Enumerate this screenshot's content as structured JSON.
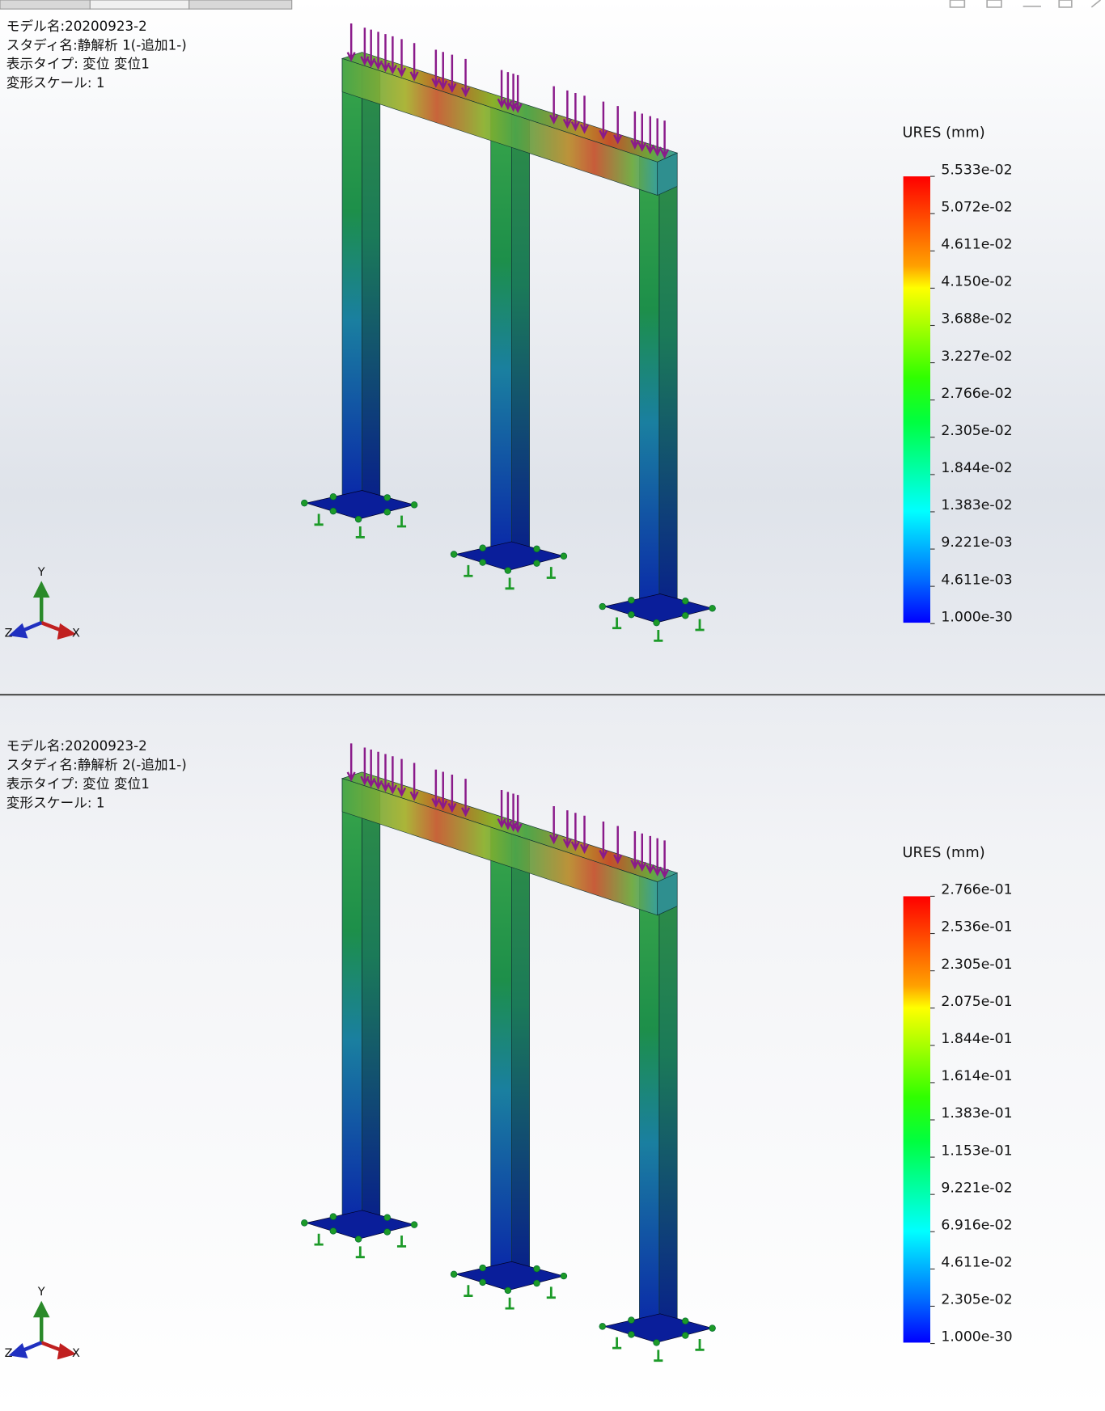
{
  "panels": [
    {
      "info": [
        "モデル名:20200923-2",
        "スタディ名:静解析 1(-追加1-)",
        "表示タイプ: 変位 変位1",
        "変形スケール: 1"
      ],
      "legend": {
        "title": "URES (mm)",
        "labels": [
          "5.533e-02",
          "5.072e-02",
          "4.611e-02",
          "4.150e-02",
          "3.688e-02",
          "3.227e-02",
          "2.766e-02",
          "2.305e-02",
          "1.844e-02",
          "1.383e-02",
          "9.221e-03",
          "4.611e-03",
          "1.000e-30"
        ]
      },
      "triad": {
        "y": "Y",
        "z": "Z",
        "x": "X"
      }
    },
    {
      "info": [
        "モデル名:20200923-2",
        "スタディ名:静解析 2(-追加1-)",
        "表示タイプ: 変位 変位1",
        "変形スケール: 1"
      ],
      "legend": {
        "title": "URES (mm)",
        "labels": [
          "2.766e-01",
          "2.536e-01",
          "2.305e-01",
          "2.075e-01",
          "1.844e-01",
          "1.614e-01",
          "1.383e-01",
          "1.153e-01",
          "9.221e-02",
          "6.916e-02",
          "4.611e-02",
          "2.305e-02",
          "1.000e-30"
        ]
      },
      "triad": {
        "y": "Y",
        "z": "Z",
        "x": "X"
      }
    }
  ]
}
